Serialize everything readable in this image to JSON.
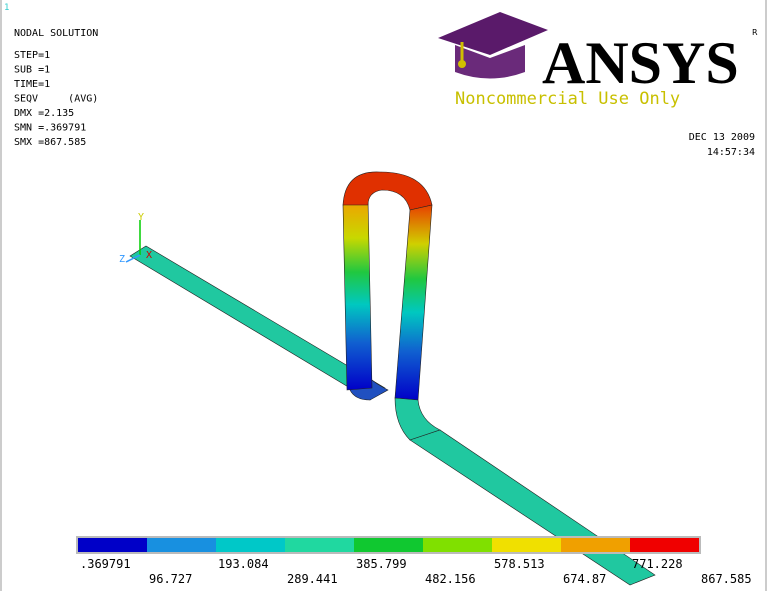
{
  "header": {
    "number": "1",
    "title": "NODAL SOLUTION",
    "lines": [
      "STEP=1",
      "SUB =1",
      "TIME=1",
      "SEQV     (AVG)",
      "DMX =2.135",
      "SMN =.369791",
      "SMX =867.585"
    ]
  },
  "logo": {
    "name": "ANSYS",
    "badge": "R",
    "notice": "Noncommercial Use Only"
  },
  "timestamp": {
    "date": "DEC 13 2009",
    "time": "14:57:34"
  },
  "triad": {
    "y": "Y",
    "z": "Z",
    "x": "X"
  },
  "legend": {
    "labels": [
      ".369791",
      "96.727",
      "193.084",
      "289.441",
      "385.799",
      "482.156",
      "578.513",
      "674.87",
      "771.228",
      "867.585"
    ]
  }
}
